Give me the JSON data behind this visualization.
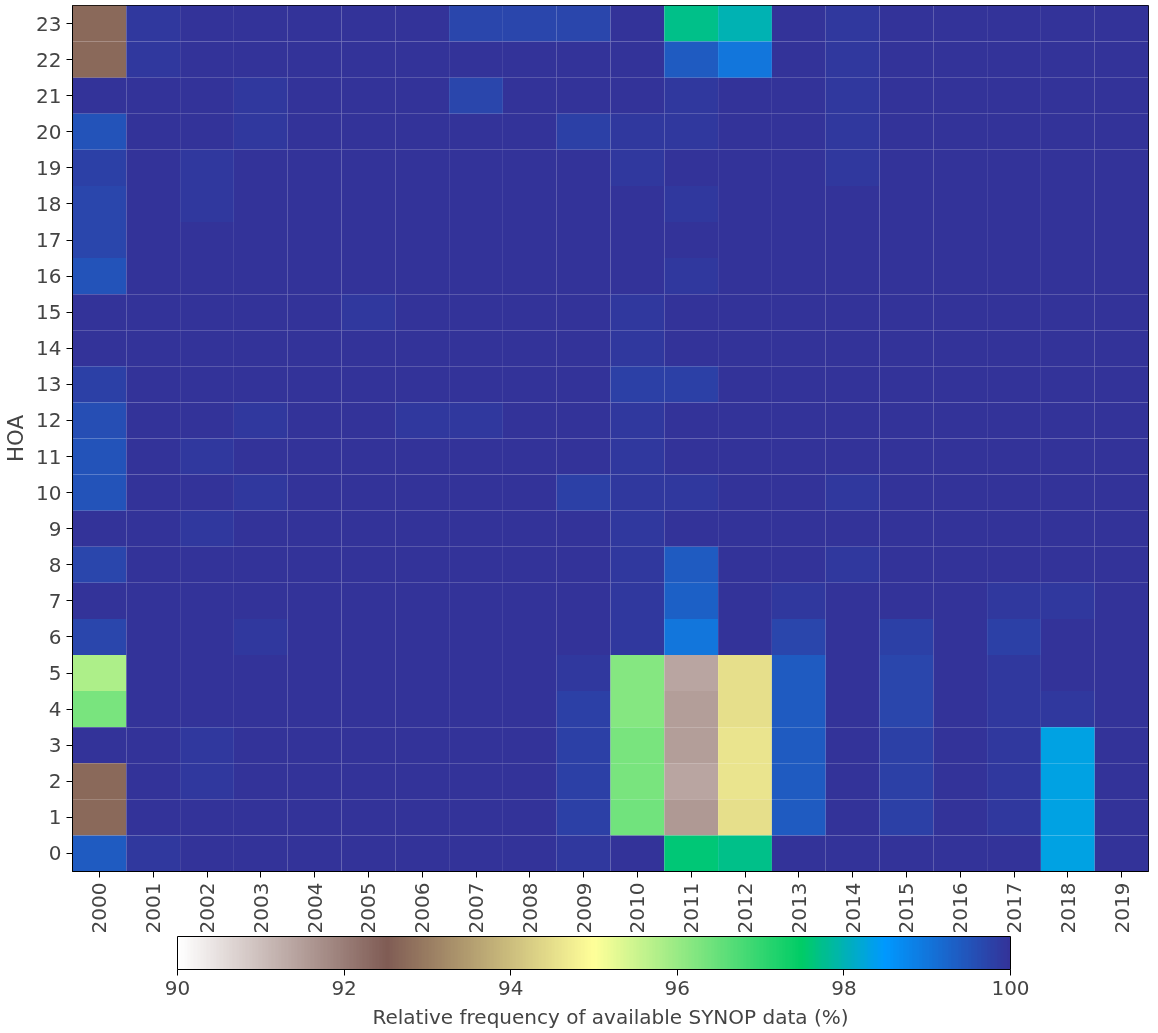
{
  "chart_data": {
    "type": "heatmap",
    "ylabel": "HOA",
    "clabel": "Relative frequency of available SYNOP data (%)",
    "categories": [
      "2000",
      "2001",
      "2002",
      "2003",
      "2004",
      "2005",
      "2006",
      "2007",
      "2008",
      "2009",
      "2010",
      "2011",
      "2012",
      "2013",
      "2014",
      "2015",
      "2016",
      "2017",
      "2018",
      "2019"
    ],
    "y_categories": [
      "23",
      "22",
      "21",
      "20",
      "19",
      "18",
      "17",
      "16",
      "15",
      "14",
      "13",
      "12",
      "11",
      "10",
      "9",
      "8",
      "7",
      "6",
      "5",
      "4",
      "3",
      "2",
      "1",
      "0"
    ],
    "cells": [
      [
        92.7,
        99.9,
        100,
        100,
        100,
        100,
        100,
        99.7,
        99.7,
        99.7,
        100,
        97.7,
        98.0,
        100,
        99.9,
        100,
        100,
        100,
        100,
        100
      ],
      [
        92.7,
        99.9,
        100,
        100,
        100,
        100,
        100,
        100,
        100,
        100,
        100,
        99.4,
        99.0,
        100,
        99.9,
        100,
        100,
        100,
        100,
        100
      ],
      [
        100,
        100,
        100,
        99.9,
        100,
        100,
        100,
        99.7,
        100,
        100,
        100,
        99.9,
        100,
        100,
        99.9,
        100,
        100,
        100,
        100,
        100
      ],
      [
        99.5,
        100,
        100,
        99.9,
        100,
        100,
        100,
        100,
        100,
        99.8,
        99.9,
        99.9,
        100,
        100,
        99.9,
        100,
        100,
        100,
        100,
        100
      ],
      [
        99.8,
        100,
        99.9,
        100,
        100,
        100,
        100,
        100,
        100,
        100,
        99.9,
        100,
        100,
        100,
        99.9,
        100,
        100,
        100,
        100,
        100
      ],
      [
        99.7,
        100,
        99.9,
        100,
        100,
        100,
        100,
        100,
        100,
        100,
        100,
        99.9,
        100,
        100,
        100,
        100,
        100,
        100,
        100,
        100
      ],
      [
        99.7,
        100,
        100,
        100,
        100,
        100,
        100,
        100,
        100,
        100,
        100,
        100,
        100,
        100,
        100,
        100,
        100,
        100,
        100,
        100
      ],
      [
        99.5,
        100,
        100,
        100,
        100,
        100,
        100,
        100,
        100,
        100,
        100,
        99.9,
        100,
        100,
        100,
        100,
        100,
        100,
        100,
        100
      ],
      [
        100,
        100,
        100,
        100,
        100,
        99.9,
        100,
        100,
        100,
        100,
        99.9,
        100,
        100,
        100,
        100,
        100,
        100,
        100,
        100,
        100
      ],
      [
        100,
        100,
        100,
        100,
        100,
        100,
        100,
        100,
        100,
        100,
        99.9,
        100,
        100,
        100,
        100,
        100,
        100,
        100,
        100,
        100
      ],
      [
        99.8,
        100,
        100,
        100,
        100,
        100,
        100,
        100,
        100,
        100,
        99.8,
        99.8,
        100,
        100,
        100,
        100,
        100,
        100,
        100,
        100
      ],
      [
        99.6,
        100,
        100,
        99.9,
        100,
        100,
        99.9,
        99.9,
        100,
        100,
        99.9,
        100,
        100,
        100,
        100,
        100,
        100,
        100,
        100,
        100
      ],
      [
        99.5,
        100,
        99.9,
        100,
        100,
        100,
        100,
        100,
        100,
        100,
        99.9,
        100,
        100,
        100,
        100,
        100,
        100,
        100,
        100,
        100
      ],
      [
        99.5,
        100,
        100,
        99.9,
        100,
        100,
        100,
        100,
        100,
        99.8,
        99.9,
        99.9,
        100,
        100,
        99.9,
        100,
        100,
        100,
        100,
        100
      ],
      [
        100,
        100,
        99.9,
        100,
        100,
        100,
        100,
        100,
        100,
        100,
        99.9,
        100,
        100,
        100,
        100,
        100,
        100,
        100,
        100,
        100
      ],
      [
        99.7,
        100,
        100,
        100,
        100,
        100,
        100,
        100,
        100,
        100,
        99.9,
        99.4,
        100,
        100,
        99.9,
        100,
        100,
        100,
        100,
        100
      ],
      [
        100,
        100,
        100,
        100,
        100,
        100,
        100,
        100,
        100,
        100,
        99.9,
        99.3,
        100,
        99.9,
        100,
        100,
        100,
        99.9,
        99.9,
        100
      ],
      [
        99.7,
        100,
        100,
        99.9,
        100,
        100,
        100,
        100,
        100,
        100,
        99.9,
        99.0,
        100,
        99.7,
        100,
        99.8,
        100,
        99.8,
        100,
        100
      ],
      [
        95.8,
        100,
        100,
        100,
        100,
        100,
        100,
        100,
        100,
        99.9,
        96.2,
        91.4,
        94.5,
        99.4,
        100,
        99.7,
        100,
        99.9,
        100,
        100
      ],
      [
        96.3,
        100,
        100,
        100,
        100,
        100,
        100,
        100,
        100,
        99.8,
        96.2,
        91.5,
        94.5,
        99.4,
        100,
        99.7,
        100,
        99.9,
        99.9,
        100
      ],
      [
        100,
        100,
        99.9,
        100,
        100,
        100,
        100,
        100,
        100,
        99.8,
        96.3,
        91.5,
        94.6,
        99.4,
        100,
        99.8,
        100,
        99.9,
        98.3,
        100
      ],
      [
        92.7,
        100,
        99.9,
        100,
        100,
        100,
        100,
        100,
        100,
        99.8,
        96.3,
        91.4,
        94.6,
        99.4,
        100,
        99.8,
        100,
        99.9,
        98.3,
        100
      ],
      [
        92.7,
        100,
        100,
        100,
        100,
        100,
        100,
        100,
        100,
        99.8,
        96.4,
        91.6,
        94.5,
        99.4,
        100,
        99.8,
        100,
        99.9,
        98.3,
        100
      ],
      [
        99.4,
        99.9,
        100,
        100,
        100,
        100,
        100,
        100,
        100,
        99.9,
        100,
        97.6,
        97.7,
        100,
        100,
        100,
        100,
        100,
        98.3,
        100
      ]
    ],
    "clim": [
      90,
      100
    ],
    "cticks": [
      90,
      92,
      94,
      96,
      98,
      100
    ]
  }
}
